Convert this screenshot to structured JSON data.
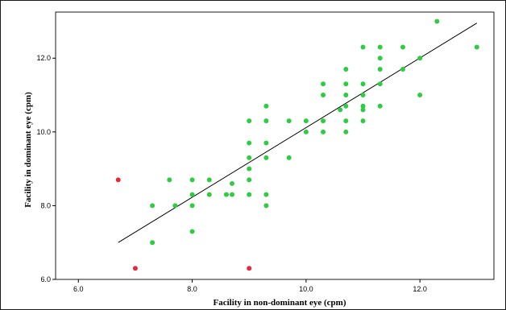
{
  "chart_data": {
    "type": "scatter",
    "title": "",
    "xlabel": "Facility in non-dominant eye (cpm)",
    "ylabel": "Facility in dominant eye (cpm)",
    "xlim": [
      5.6,
      13.3
    ],
    "ylim": [
      6.0,
      13.25
    ],
    "xticks": [
      "6.0",
      "8.0",
      "10.0",
      "12.0"
    ],
    "yticks": [
      "6.0",
      "8.0",
      "10.0",
      "12.0"
    ],
    "grid": false,
    "legend": "none",
    "colors": {
      "normal": "#2ecc40",
      "outlier": "#e8283c",
      "line": "#000000"
    },
    "series": [
      {
        "color": "#2ecc40",
        "points": [
          [
            7.3,
            7.0
          ],
          [
            7.3,
            8.0
          ],
          [
            7.6,
            8.7
          ],
          [
            7.7,
            8.0
          ],
          [
            8.0,
            8.7
          ],
          [
            8.0,
            8.3
          ],
          [
            8.0,
            8.0
          ],
          [
            8.0,
            7.3
          ],
          [
            8.3,
            8.7
          ],
          [
            8.3,
            8.3
          ],
          [
            8.6,
            8.3
          ],
          [
            8.7,
            8.6
          ],
          [
            8.7,
            8.3
          ],
          [
            9.0,
            10.3
          ],
          [
            9.0,
            9.7
          ],
          [
            9.0,
            9.3
          ],
          [
            9.0,
            9.0
          ],
          [
            9.0,
            8.7
          ],
          [
            9.0,
            8.3
          ],
          [
            9.3,
            10.7
          ],
          [
            9.3,
            10.3
          ],
          [
            9.3,
            9.7
          ],
          [
            9.3,
            9.3
          ],
          [
            9.3,
            8.3
          ],
          [
            9.3,
            8.0
          ],
          [
            9.7,
            10.3
          ],
          [
            9.7,
            9.3
          ],
          [
            10.0,
            10.3
          ],
          [
            10.0,
            10.0
          ],
          [
            10.3,
            11.3
          ],
          [
            10.3,
            11.0
          ],
          [
            10.3,
            10.3
          ],
          [
            10.3,
            10.0
          ],
          [
            10.6,
            10.6
          ],
          [
            10.7,
            11.7
          ],
          [
            10.7,
            11.3
          ],
          [
            10.7,
            11.0
          ],
          [
            10.7,
            10.7
          ],
          [
            10.7,
            10.3
          ],
          [
            10.7,
            10.0
          ],
          [
            11.0,
            12.3
          ],
          [
            11.0,
            11.3
          ],
          [
            11.0,
            11.0
          ],
          [
            11.0,
            10.7
          ],
          [
            11.0,
            10.6
          ],
          [
            11.0,
            10.3
          ],
          [
            11.3,
            12.3
          ],
          [
            11.3,
            12.0
          ],
          [
            11.3,
            11.7
          ],
          [
            11.3,
            11.3
          ],
          [
            11.3,
            10.7
          ],
          [
            11.7,
            12.3
          ],
          [
            11.7,
            11.7
          ],
          [
            12.0,
            12.0
          ],
          [
            12.0,
            11.0
          ],
          [
            12.3,
            13.0
          ],
          [
            13.0,
            12.3
          ]
        ]
      },
      {
        "color": "#e8283c",
        "points": [
          [
            6.7,
            8.7
          ],
          [
            7.0,
            6.3
          ],
          [
            9.0,
            6.3
          ]
        ]
      }
    ],
    "fit_line": {
      "x": [
        6.7,
        13.0
      ],
      "y": [
        7.0,
        12.95
      ]
    }
  }
}
